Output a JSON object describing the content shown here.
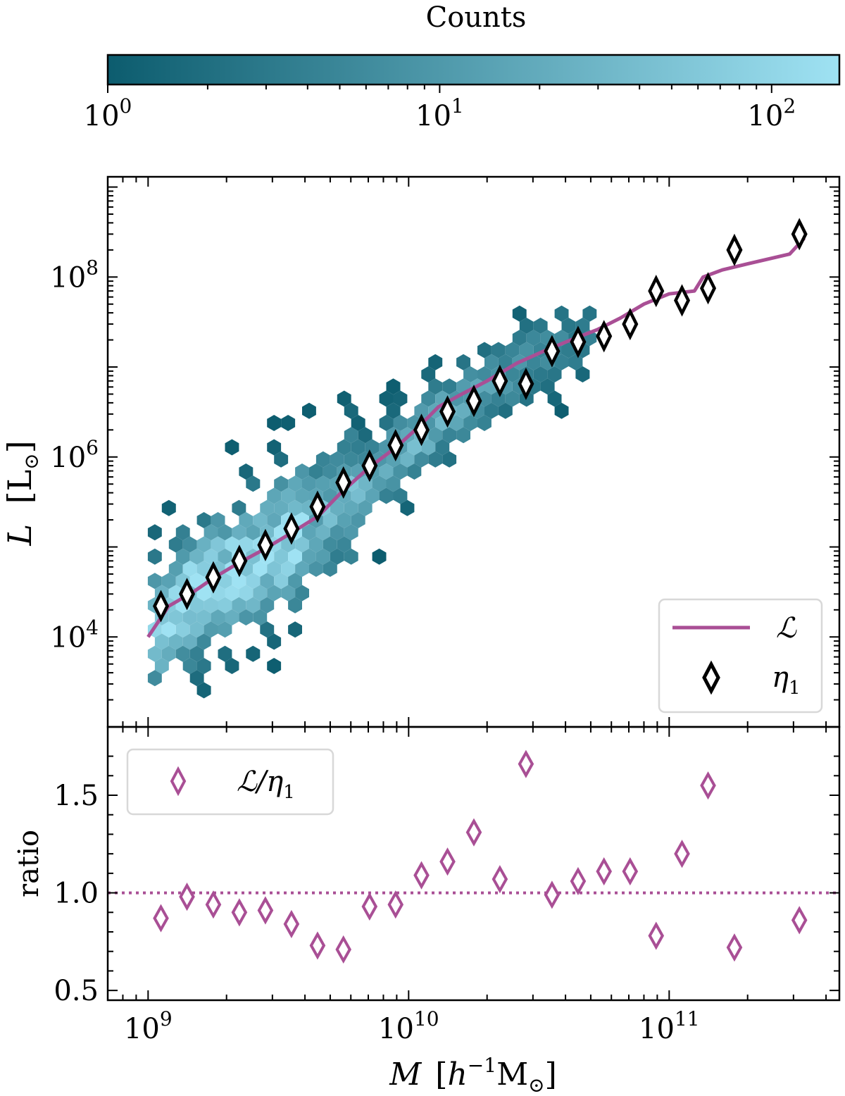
{
  "colors": {
    "hex_dark": "#0c5c6e",
    "hex_light": "#9fe2f3",
    "line": "#a94f95",
    "marker": "#000000",
    "ratio_marker": "#a94f95",
    "ref_line": "#a94f95"
  },
  "colorbar": {
    "label": "Counts",
    "scale": "log",
    "range": [
      1,
      160
    ],
    "ticks": [
      {
        "value": 1,
        "base": "10",
        "exp": "0"
      },
      {
        "value": 10,
        "base": "10",
        "exp": "1"
      },
      {
        "value": 100,
        "base": "10",
        "exp": "2"
      }
    ]
  },
  "chart_data": [
    {
      "type": "hexbin+line+scatter",
      "xscale": "log",
      "yscale": "log",
      "xlim": [
        700000000.0,
        450000000000.0
      ],
      "ylim": [
        1000.0,
        1300000000.0
      ],
      "ylabel": {
        "main": "L",
        "unit": "[L",
        "sub": "⊙",
        "close": "]"
      },
      "yticks": [
        {
          "value": 10000,
          "base": "10",
          "exp": "4"
        },
        {
          "value": 1000000,
          "base": "10",
          "exp": "6"
        },
        {
          "value": 100000000,
          "base": "10",
          "exp": "8"
        }
      ],
      "hexbin_ridge": [
        {
          "x": 1000000000.0,
          "y": 12000.0
        },
        {
          "x": 1500000000.0,
          "y": 30000.0
        },
        {
          "x": 2200000000.0,
          "y": 55000.0
        },
        {
          "x": 3500000000.0,
          "y": 120000.0
        },
        {
          "x": 5500000000.0,
          "y": 300000.0
        },
        {
          "x": 9000000000.0,
          "y": 1000000.0
        },
        {
          "x": 15000000000.0,
          "y": 3500000.0
        },
        {
          "x": 30000000000.0,
          "y": 12000000.0
        },
        {
          "x": 60000000000.0,
          "y": 30000000.0
        },
        {
          "x": 120000000000.0,
          "y": 80000000.0
        },
        {
          "x": 300000000000.0,
          "y": 300000000.0
        }
      ],
      "series": [
        {
          "name": "L_line",
          "legend_label": "ℒ",
          "style": "line",
          "x": [
            1000000000.0,
            1200000000.0,
            1500000000.0,
            1800000000.0,
            2200000000.0,
            2800000000.0,
            3500000000.0,
            4500000000.0,
            5500000000.0,
            7000000000.0,
            9000000000.0,
            11000000000.0,
            13000000000.0,
            16000000000.0,
            20000000000.0,
            26000000000.0,
            33000000000.0,
            42000000000.0,
            53000000000.0,
            65000000000.0,
            80000000000.0,
            100000000000.0,
            125000000000.0,
            135000000000.0,
            160000000000.0,
            200000000000.0,
            290000000000.0,
            330000000000.0
          ],
          "y": [
            10000.0,
            22000.0,
            32000.0,
            46000.0,
            65000.0,
            95000.0,
            140000.0,
            220000.0,
            400000.0,
            750000.0,
            1300000.0,
            2200000.0,
            3600000.0,
            5000000.0,
            7000000.0,
            11000000.0,
            15000000.0,
            20000000.0,
            26000000.0,
            35000000.0,
            50000000.0,
            65000000.0,
            70000000.0,
            100000000.0,
            120000000.0,
            140000000.0,
            180000000.0,
            270000000.0
          ]
        },
        {
          "name": "eta1",
          "legend_label": "η",
          "legend_sub": "1",
          "style": "diamond",
          "x": [
            1120000000.0,
            1410000000.0,
            1780000000.0,
            2240000000.0,
            2820000000.0,
            3550000000.0,
            4470000000.0,
            5620000000.0,
            7080000000.0,
            8910000000.0,
            11200000000.0,
            14100000000.0,
            17800000000.0,
            22400000000.0,
            28200000000.0,
            35500000000.0,
            44700000000.0,
            56200000000.0,
            70800000000.0,
            89100000000.0,
            112000000000.0,
            141000000000.0,
            178000000000.0,
            316000000000.0
          ],
          "y": [
            22000.0,
            30000.0,
            46000.0,
            70000.0,
            105000.0,
            160000.0,
            280000.0,
            520000.0,
            800000.0,
            1350000.0,
            2000000.0,
            3200000.0,
            4200000.0,
            7000000.0,
            6500000.0,
            15000000.0,
            19000000.0,
            22000000.0,
            30000000.0,
            70000000.0,
            55000000.0,
            75000000.0,
            200000000.0,
            300000000.0
          ]
        }
      ]
    },
    {
      "type": "scatter",
      "xscale": "log",
      "xlim": [
        700000000.0,
        450000000000.0
      ],
      "ylim": [
        0.45,
        1.85
      ],
      "ylabel": "ratio",
      "xlabel": {
        "main": "M",
        "unit_open": "[",
        "h": "h",
        "exp": "−1",
        "unit": "M",
        "sub": "⊙",
        "close": "]"
      },
      "yticks": [
        {
          "value": 0.5,
          "label": "0.5"
        },
        {
          "value": 1.0,
          "label": "1.0"
        },
        {
          "value": 1.5,
          "label": "1.5"
        }
      ],
      "xticks": [
        {
          "value": 1000000000.0,
          "base": "10",
          "exp": "9"
        },
        {
          "value": 10000000000.0,
          "base": "10",
          "exp": "10"
        },
        {
          "value": 100000000000.0,
          "base": "10",
          "exp": "11"
        }
      ],
      "reference_line": 1.0,
      "series": [
        {
          "name": "ratio",
          "legend_label": "ℒ/η",
          "legend_sub": "1",
          "style": "diamond",
          "x": [
            1120000000.0,
            1410000000.0,
            1780000000.0,
            2240000000.0,
            2820000000.0,
            3550000000.0,
            4470000000.0,
            5620000000.0,
            7080000000.0,
            8910000000.0,
            11200000000.0,
            14100000000.0,
            17800000000.0,
            22400000000.0,
            28200000000.0,
            35500000000.0,
            44700000000.0,
            56200000000.0,
            70800000000.0,
            89100000000.0,
            112000000000.0,
            141000000000.0,
            178000000000.0,
            316000000000.0
          ],
          "y": [
            0.87,
            0.98,
            0.94,
            0.9,
            0.91,
            0.84,
            0.73,
            0.71,
            0.93,
            0.94,
            1.09,
            1.16,
            1.31,
            1.07,
            1.66,
            0.99,
            1.06,
            1.11,
            1.11,
            0.78,
            1.2,
            1.55,
            0.72,
            0.86
          ]
        }
      ]
    }
  ]
}
